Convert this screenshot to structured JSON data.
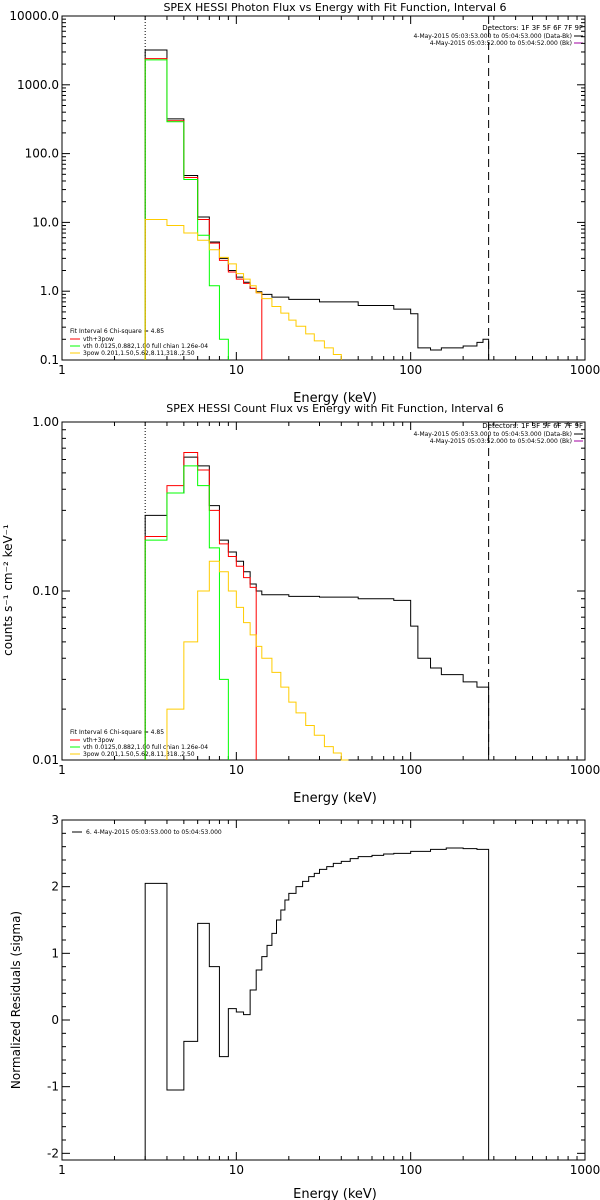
{
  "chart_data": [
    {
      "type": "line",
      "title": "SPEX HESSI Photon Flux vs Energy with Fit Function, Interval 6",
      "xlabel": "Energy (keV)",
      "ylabel": "",
      "xscale": "log",
      "yscale": "log",
      "xlim": [
        1,
        1000
      ],
      "ylim": [
        0.1,
        10000
      ],
      "x_ticks": [
        "1",
        "10",
        "100",
        "1000"
      ],
      "y_ticks": [
        "0.1",
        "1.0",
        "10.0",
        "100.0",
        "1000.0",
        "10000.0"
      ],
      "legend_top_right": [
        "Detectors: 1F 3F 5F 6F 7F 9F",
        "4-May-2015 05:03:53.000 to 05:04:53.000 (Data-Bk)",
        "4-May-2015 05:03:52.000 to 05:04:52.000 (Bk)"
      ],
      "legend_bottom_left": {
        "header": "Fit Interval  6    Chi-square = 4.85",
        "entries": [
          "vth+3pow",
          "vth 0.0125,0.882,1.00  full chian 1.26e-04",
          "3pow 0.201,1.50,5.62,8.11,318.,2.50"
        ]
      },
      "vlines": [
        3,
        280
      ],
      "series": [
        {
          "name": "Data-Bk",
          "color": "#000000",
          "x": [
            3,
            4,
            5,
            6,
            7,
            8,
            9,
            10,
            11,
            12,
            13,
            14,
            16,
            20,
            30,
            50,
            80,
            100,
            110,
            130,
            150,
            200,
            240,
            260,
            280
          ],
          "y": [
            3200,
            320,
            48,
            12,
            5.2,
            3.0,
            2.0,
            1.6,
            1.35,
            1.1,
            0.98,
            0.9,
            0.82,
            0.76,
            0.7,
            0.62,
            0.55,
            0.47,
            0.15,
            0.14,
            0.15,
            0.16,
            0.18,
            0.2,
            0.2
          ]
        },
        {
          "name": "vth+3pow",
          "color": "#ff0000",
          "x": [
            3,
            4,
            5,
            6,
            7,
            8,
            9,
            10,
            11,
            12,
            13,
            14
          ],
          "y": [
            2400,
            300,
            45,
            11,
            5.0,
            2.8,
            1.9,
            1.5,
            1.3,
            1.1,
            0.95,
            0.88
          ]
        },
        {
          "name": "vth",
          "color": "#00ff00",
          "x": [
            3,
            4,
            5,
            6,
            7,
            8,
            9
          ],
          "y": [
            2300,
            290,
            42,
            6.5,
            1.2,
            0.2,
            0.1
          ]
        },
        {
          "name": "3pow",
          "color": "#ffcc00",
          "x": [
            3,
            4,
            5,
            6,
            7,
            8,
            9,
            10,
            11,
            12,
            13,
            14,
            16,
            18,
            20,
            22,
            25,
            28,
            32,
            36,
            40
          ],
          "y": [
            11,
            9,
            7,
            5.5,
            4,
            3.1,
            2.5,
            1.8,
            1.5,
            1.2,
            0.95,
            0.78,
            0.6,
            0.48,
            0.38,
            0.31,
            0.24,
            0.19,
            0.15,
            0.12,
            0.1
          ]
        }
      ]
    },
    {
      "type": "line",
      "title": "SPEX HESSI Count Flux vs Energy with Fit Function, Interval 6",
      "xlabel": "Energy (keV)",
      "ylabel": "counts s⁻¹ cm⁻² keV⁻¹",
      "xscale": "log",
      "yscale": "log",
      "xlim": [
        1,
        1000
      ],
      "ylim": [
        0.01,
        1.0
      ],
      "x_ticks": [
        "1",
        "10",
        "100",
        "1000"
      ],
      "y_ticks": [
        "0.01",
        "0.10",
        "1.00"
      ],
      "legend_top_right": [
        "Detectors: 1F 3F 5F 6F 7F 9F",
        "4-May-2015 05:03:53.000 to 05:04:53.000 (Data-Bk)",
        "4-May-2015 05:03:52.000 to 05:04:52.000 (Bk)"
      ],
      "legend_bottom_left": {
        "header": "Fit Interval  6    Chi-square = 4.85",
        "entries": [
          "vth+3pow",
          "vth 0.0125,0.882,1.00  full chian 1.26e-04",
          "3pow 0.201,1.50,5.62,8.11,318.,2.50"
        ]
      },
      "vlines": [
        3,
        280
      ],
      "series": [
        {
          "name": "Data-Bk",
          "color": "#000000",
          "x": [
            3,
            4,
            5,
            6,
            7,
            8,
            9,
            10,
            11,
            12,
            13,
            14,
            16,
            20,
            30,
            50,
            80,
            100,
            110,
            130,
            150,
            200,
            240,
            280
          ],
          "y": [
            0.28,
            0.38,
            0.62,
            0.55,
            0.32,
            0.2,
            0.17,
            0.15,
            0.13,
            0.11,
            0.1,
            0.095,
            0.095,
            0.093,
            0.092,
            0.09,
            0.088,
            0.062,
            0.04,
            0.035,
            0.032,
            0.029,
            0.027,
            0.025
          ]
        },
        {
          "name": "vth+3pow",
          "color": "#ff0000",
          "x": [
            3,
            4,
            5,
            6,
            7,
            8,
            9,
            10,
            11,
            12,
            13
          ],
          "y": [
            0.21,
            0.42,
            0.66,
            0.52,
            0.3,
            0.19,
            0.16,
            0.14,
            0.12,
            0.105,
            0.095
          ]
        },
        {
          "name": "vth",
          "color": "#00ff00",
          "x": [
            3,
            4,
            5,
            6,
            7,
            8,
            9
          ],
          "y": [
            0.2,
            0.38,
            0.55,
            0.42,
            0.18,
            0.03,
            0.008
          ]
        },
        {
          "name": "3pow",
          "color": "#ffcc00",
          "x": [
            4,
            5,
            6,
            7,
            8,
            9,
            10,
            11,
            12,
            13,
            14,
            16,
            18,
            20,
            22,
            25,
            28,
            32,
            36,
            40,
            44
          ],
          "y": [
            0.02,
            0.05,
            0.1,
            0.15,
            0.13,
            0.1,
            0.08,
            0.065,
            0.055,
            0.047,
            0.04,
            0.033,
            0.027,
            0.022,
            0.019,
            0.016,
            0.014,
            0.012,
            0.011,
            0.01,
            0.008
          ]
        }
      ]
    },
    {
      "type": "line",
      "title": "",
      "xlabel": "Energy (keV)",
      "ylabel": "Normalized Residuals (sigma)",
      "xscale": "log",
      "yscale": "linear",
      "xlim": [
        1,
        1000
      ],
      "ylim": [
        -2.1,
        3
      ],
      "x_ticks": [
        "1",
        "10",
        "100",
        "1000"
      ],
      "y_ticks": [
        "-2",
        "-1",
        "0",
        "1",
        "2",
        "3"
      ],
      "legend": "6.  4-May-2015 05:03:53.000 to 05:04:53.000",
      "series": [
        {
          "name": "",
          "color": "#000000",
          "x": [
            3,
            4,
            5,
            6,
            7,
            8,
            9,
            10,
            11,
            12,
            13,
            14,
            15,
            16,
            17,
            18,
            19,
            20,
            22,
            24,
            26,
            28,
            30,
            33,
            36,
            40,
            45,
            50,
            60,
            70,
            80,
            100,
            130,
            160,
            200,
            240,
            280
          ],
          "y": [
            2.05,
            -1.05,
            -0.32,
            1.45,
            0.8,
            -0.55,
            0.17,
            0.12,
            0.08,
            0.45,
            0.75,
            0.95,
            1.12,
            1.3,
            1.5,
            1.65,
            1.8,
            1.9,
            2.0,
            2.08,
            2.15,
            2.2,
            2.26,
            2.3,
            2.35,
            2.38,
            2.42,
            2.45,
            2.47,
            2.49,
            2.5,
            2.53,
            2.56,
            2.58,
            2.57,
            2.56,
            2.55
          ]
        }
      ]
    }
  ]
}
